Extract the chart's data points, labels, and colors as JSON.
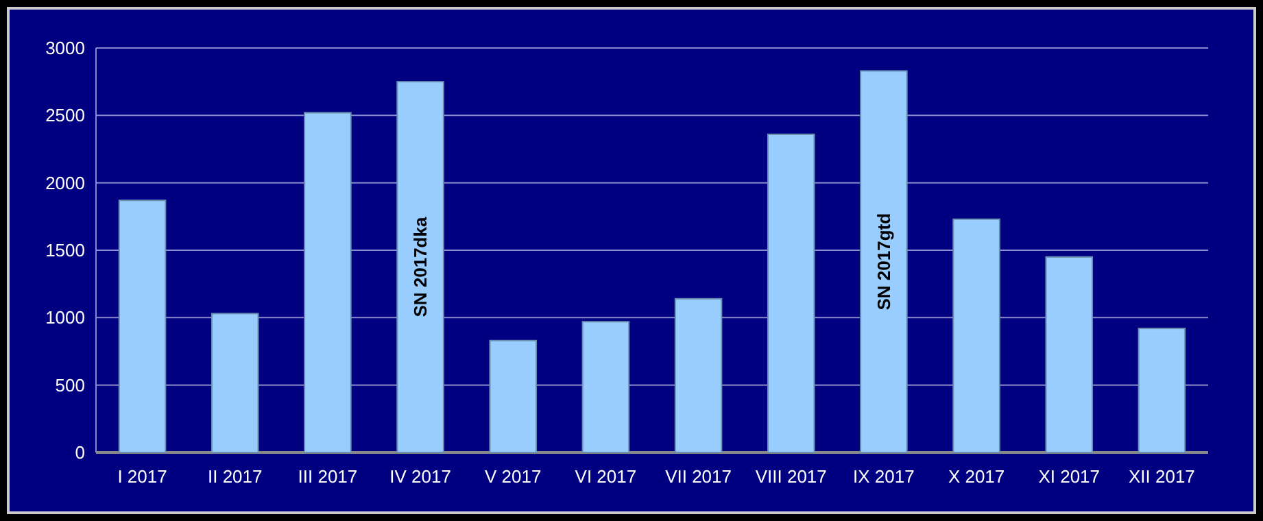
{
  "chart_data": {
    "type": "bar",
    "categories": [
      "I 2017",
      "II 2017",
      "III 2017",
      "IV 2017",
      "V 2017",
      "VI 2017",
      "VII 2017",
      "VIII 2017",
      "IX 2017",
      "X 2017",
      "XI 2017",
      "XII 2017"
    ],
    "values": [
      1870,
      1030,
      2520,
      2750,
      830,
      970,
      1140,
      2360,
      2830,
      1730,
      1450,
      920
    ],
    "color": "#99ccff",
    "ylim": [
      0,
      3000
    ],
    "yticks": [
      0,
      500,
      1000,
      1500,
      2000,
      2500,
      3000
    ],
    "grid": "y",
    "value_labels": [
      null,
      null,
      null,
      "SN 2017dka",
      null,
      null,
      null,
      null,
      "SN 2017gtd",
      null,
      null,
      null
    ]
  }
}
